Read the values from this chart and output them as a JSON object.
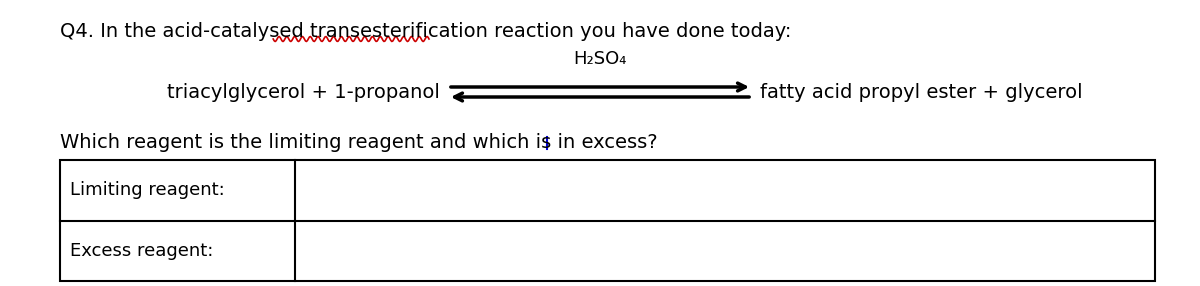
{
  "background_color": "#ffffff",
  "title_line": "Q4. In the acid-catalysed transesterification reaction you have done today:",
  "underline_word": "transesterification",
  "underline_color": "#cc0000",
  "reactants": "triacylglycerol + 1-propanol",
  "products": "fatty acid propyl ester + glycerol",
  "catalyst": "H₂SO₄",
  "question_line": "Which reagent is the limiting reagent and which is in excess?",
  "cursor_color": "#0000dd",
  "row1_label": "Limiting reagent:",
  "row2_label": "Excess reagent:",
  "font_size_title": 14,
  "font_size_body": 14,
  "font_size_table": 13,
  "font_size_catalyst": 13
}
